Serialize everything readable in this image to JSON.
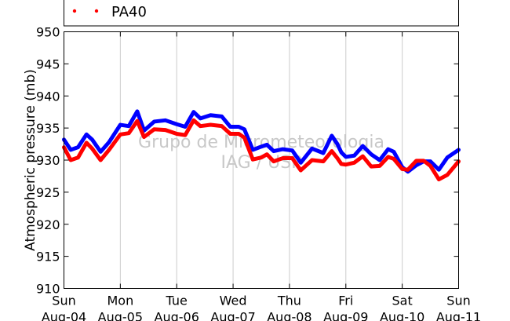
{
  "chart_data": {
    "type": "line",
    "ylabel": "Atmospheric pressure (mb)",
    "ylim": [
      910,
      950
    ],
    "yticks": [
      "910",
      "915",
      "920",
      "925",
      "930",
      "935",
      "940",
      "945",
      "950"
    ],
    "xticks": [
      {
        "day": "Sun",
        "date": "Aug-04"
      },
      {
        "day": "Mon",
        "date": "Aug-05"
      },
      {
        "day": "Tue",
        "date": "Aug-06"
      },
      {
        "day": "Wed",
        "date": "Aug-07"
      },
      {
        "day": "Thu",
        "date": "Aug-08"
      },
      {
        "day": "Fri",
        "date": "Aug-09"
      },
      {
        "day": "Sat",
        "date": "Aug-10"
      },
      {
        "day": "Sun",
        "date": "Aug-11"
      }
    ],
    "grid": "vertical",
    "legend_placement": "top",
    "watermark": [
      "Grupo de Micrometeorologia",
      "IAG / USP"
    ],
    "series": [
      {
        "name": "",
        "color": "#0000ff",
        "points": [
          [
            0.0,
            933.2
          ],
          [
            0.12,
            931.6
          ],
          [
            0.25,
            932.0
          ],
          [
            0.4,
            934.0
          ],
          [
            0.5,
            933.2
          ],
          [
            0.65,
            931.3
          ],
          [
            0.8,
            932.8
          ],
          [
            1.0,
            935.5
          ],
          [
            1.15,
            935.3
          ],
          [
            1.3,
            937.6
          ],
          [
            1.42,
            934.6
          ],
          [
            1.6,
            936.0
          ],
          [
            1.8,
            936.2
          ],
          [
            2.0,
            935.6
          ],
          [
            2.15,
            935.2
          ],
          [
            2.3,
            937.5
          ],
          [
            2.42,
            936.5
          ],
          [
            2.6,
            937.0
          ],
          [
            2.8,
            936.8
          ],
          [
            2.95,
            935.2
          ],
          [
            3.1,
            935.2
          ],
          [
            3.2,
            934.8
          ],
          [
            3.35,
            931.6
          ],
          [
            3.5,
            932.1
          ],
          [
            3.6,
            932.4
          ],
          [
            3.72,
            931.4
          ],
          [
            3.88,
            931.7
          ],
          [
            4.05,
            931.5
          ],
          [
            4.2,
            929.6
          ],
          [
            4.4,
            931.8
          ],
          [
            4.6,
            931.1
          ],
          [
            4.75,
            933.8
          ],
          [
            4.85,
            932.5
          ],
          [
            4.92,
            931.2
          ],
          [
            5.0,
            930.5
          ],
          [
            5.15,
            930.7
          ],
          [
            5.3,
            932.2
          ],
          [
            5.45,
            930.9
          ],
          [
            5.6,
            930.0
          ],
          [
            5.75,
            931.7
          ],
          [
            5.85,
            931.3
          ],
          [
            6.0,
            928.9
          ],
          [
            6.1,
            928.2
          ],
          [
            6.25,
            929.2
          ],
          [
            6.38,
            929.8
          ],
          [
            6.5,
            929.8
          ],
          [
            6.65,
            928.5
          ],
          [
            6.8,
            930.4
          ],
          [
            7.0,
            931.6
          ]
        ]
      },
      {
        "name": "PA40",
        "color": "#ff0000",
        "points": [
          [
            0.0,
            932.0
          ],
          [
            0.12,
            930.0
          ],
          [
            0.25,
            930.4
          ],
          [
            0.4,
            932.7
          ],
          [
            0.5,
            931.8
          ],
          [
            0.65,
            930.0
          ],
          [
            0.8,
            931.6
          ],
          [
            1.0,
            934.0
          ],
          [
            1.15,
            934.2
          ],
          [
            1.3,
            936.1
          ],
          [
            1.42,
            933.6
          ],
          [
            1.6,
            934.8
          ],
          [
            1.8,
            934.7
          ],
          [
            2.0,
            934.1
          ],
          [
            2.15,
            933.9
          ],
          [
            2.3,
            936.2
          ],
          [
            2.42,
            935.3
          ],
          [
            2.6,
            935.5
          ],
          [
            2.8,
            935.3
          ],
          [
            2.95,
            934.1
          ],
          [
            3.1,
            934.1
          ],
          [
            3.2,
            933.5
          ],
          [
            3.35,
            930.1
          ],
          [
            3.5,
            930.4
          ],
          [
            3.6,
            930.9
          ],
          [
            3.72,
            929.8
          ],
          [
            3.88,
            930.3
          ],
          [
            4.05,
            930.3
          ],
          [
            4.2,
            928.4
          ],
          [
            4.4,
            930.0
          ],
          [
            4.6,
            929.8
          ],
          [
            4.75,
            931.4
          ],
          [
            4.85,
            930.3
          ],
          [
            4.92,
            929.4
          ],
          [
            5.0,
            929.3
          ],
          [
            5.15,
            929.6
          ],
          [
            5.3,
            930.6
          ],
          [
            5.45,
            929.0
          ],
          [
            5.6,
            929.1
          ],
          [
            5.75,
            930.5
          ],
          [
            5.85,
            930.2
          ],
          [
            6.0,
            928.6
          ],
          [
            6.1,
            928.5
          ],
          [
            6.25,
            929.9
          ],
          [
            6.38,
            929.9
          ],
          [
            6.5,
            929.1
          ],
          [
            6.65,
            927.0
          ],
          [
            6.8,
            927.7
          ],
          [
            7.0,
            929.8
          ]
        ]
      }
    ]
  }
}
